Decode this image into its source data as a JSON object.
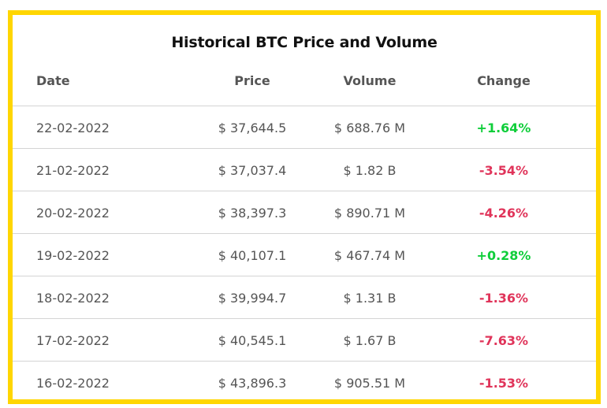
{
  "title": "Historical BTC Price and Volume",
  "headers": {
    "date": "Date",
    "price": "Price",
    "volume": "Volume",
    "change": "Change"
  },
  "rows": [
    {
      "date": "22-02-2022",
      "price": "$ 37,644.5",
      "volume": "$ 688.76 M",
      "change": "+1.64%",
      "direction": "up"
    },
    {
      "date": "21-02-2022",
      "price": "$ 37,037.4",
      "volume": "$ 1.82 B",
      "change": "-3.54%",
      "direction": "down"
    },
    {
      "date": "20-02-2022",
      "price": "$ 38,397.3",
      "volume": "$ 890.71 M",
      "change": "-4.26%",
      "direction": "down"
    },
    {
      "date": "19-02-2022",
      "price": "$ 40,107.1",
      "volume": "$ 467.74 M",
      "change": "+0.28%",
      "direction": "up"
    },
    {
      "date": "18-02-2022",
      "price": "$ 39,994.7",
      "volume": "$ 1.31 B",
      "change": "-1.36%",
      "direction": "down"
    },
    {
      "date": "17-02-2022",
      "price": "$ 40,545.1",
      "volume": "$ 1.67 B",
      "change": "-7.63%",
      "direction": "down"
    },
    {
      "date": "16-02-2022",
      "price": "$ 43,896.3",
      "volume": "$ 905.51 M",
      "change": "-1.53%",
      "direction": "down"
    }
  ],
  "colors": {
    "frame": "#ffd600",
    "positive": "#0fce3a",
    "negative": "#e0345a"
  }
}
